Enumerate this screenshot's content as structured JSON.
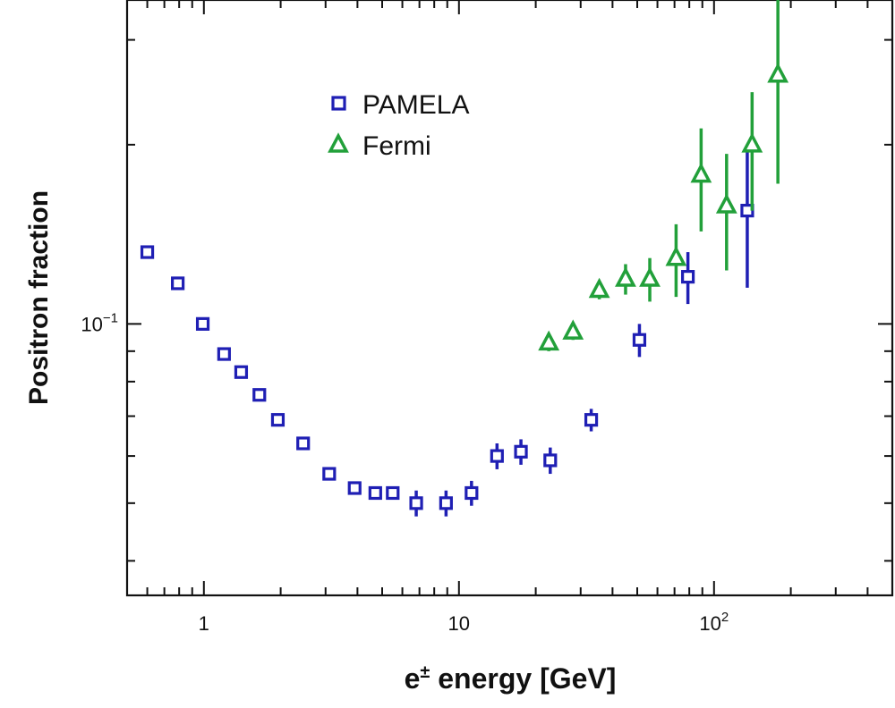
{
  "chart_data": {
    "type": "scatter",
    "xlabel_main": "e",
    "xlabel_sup": "±",
    "xlabel_rest": " energy [GeV]",
    "ylabel": "Positron fraction",
    "xscale": "log",
    "yscale": "log",
    "xlim": [
      0.5,
      500
    ],
    "ylim": [
      0.035,
      0.35
    ],
    "x_tick_labels": [
      {
        "value": 1,
        "base": "1",
        "exp": ""
      },
      {
        "value": 10,
        "base": "10",
        "exp": ""
      },
      {
        "value": 100,
        "base": "10",
        "exp": "2"
      }
    ],
    "y_tick_labels": [
      {
        "value": 0.1,
        "base": "10",
        "exp": "−1"
      }
    ],
    "legend": {
      "placement": "top-left"
    },
    "series": [
      {
        "name": "PAMELA",
        "marker": "square",
        "color": "#1f1fb4",
        "points": [
          {
            "x": 0.6,
            "y": 0.132,
            "err": 0
          },
          {
            "x": 0.79,
            "y": 0.117,
            "err": 0
          },
          {
            "x": 0.99,
            "y": 0.1,
            "err": 0
          },
          {
            "x": 1.2,
            "y": 0.089,
            "err": 0
          },
          {
            "x": 1.4,
            "y": 0.083,
            "err": 0
          },
          {
            "x": 1.65,
            "y": 0.076,
            "err": 0
          },
          {
            "x": 1.95,
            "y": 0.069,
            "err": 0
          },
          {
            "x": 2.45,
            "y": 0.063,
            "err": 0
          },
          {
            "x": 3.1,
            "y": 0.056,
            "err": 0
          },
          {
            "x": 3.9,
            "y": 0.053,
            "err": 0
          },
          {
            "x": 4.7,
            "y": 0.052,
            "err": 0
          },
          {
            "x": 5.5,
            "y": 0.052,
            "err": 0
          },
          {
            "x": 6.8,
            "y": 0.05,
            "err": 0.0025
          },
          {
            "x": 8.9,
            "y": 0.05,
            "err": 0.0025
          },
          {
            "x": 11.2,
            "y": 0.052,
            "err": 0.0025
          },
          {
            "x": 14.1,
            "y": 0.06,
            "err": 0.003
          },
          {
            "x": 17.5,
            "y": 0.061,
            "err": 0.003
          },
          {
            "x": 22.8,
            "y": 0.059,
            "err": 0.003
          },
          {
            "x": 33.0,
            "y": 0.069,
            "err": 0.003
          },
          {
            "x": 51.0,
            "y": 0.094,
            "err": 0.006
          },
          {
            "x": 79.0,
            "y": 0.12,
            "err": 0.012
          },
          {
            "x": 135.0,
            "y": 0.155,
            "err": 0.04
          }
        ]
      },
      {
        "name": "Fermi",
        "marker": "triangle",
        "color": "#22a03a",
        "points": [
          {
            "x": 22.5,
            "y": 0.093,
            "err": 0.003
          },
          {
            "x": 28.0,
            "y": 0.097,
            "err": 0.003
          },
          {
            "x": 35.5,
            "y": 0.114,
            "err": 0.004
          },
          {
            "x": 45.0,
            "y": 0.119,
            "err": 0.007
          },
          {
            "x": 56.0,
            "y": 0.119,
            "err": 0.01
          },
          {
            "x": 71.0,
            "y": 0.129,
            "err": 0.018
          },
          {
            "x": 89.0,
            "y": 0.178,
            "err": 0.035
          },
          {
            "x": 112.0,
            "y": 0.158,
            "err": 0.035
          },
          {
            "x": 141.0,
            "y": 0.2,
            "err": 0.045
          },
          {
            "x": 178.0,
            "y": 0.262,
            "err": 0.09
          }
        ]
      }
    ]
  }
}
